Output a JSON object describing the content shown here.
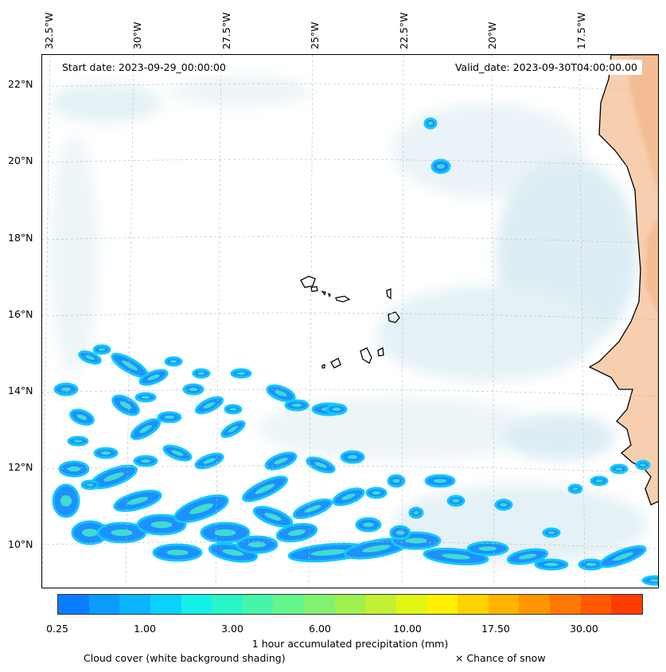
{
  "map": {
    "start_date": "Start date: 2023-09-29_00:00:00",
    "valid_date": "Valid_date: 2023-09-30T04:00:00.00",
    "longitude_labels": [
      "32.5°W",
      "30°W",
      "27.5°W",
      "25°W",
      "22.5°W",
      "20°W",
      "17.5°W"
    ],
    "latitude_labels": [
      "22°N",
      "20°N",
      "18°N",
      "16°N",
      "14°N",
      "12°N",
      "10°N"
    ],
    "region": "Cape Verde Islands and West African coast",
    "colors": {
      "land": "#f7c9a3",
      "cloud": "#d6ebf2",
      "precip_light": "#0a8cff",
      "coastline": "#000000"
    }
  },
  "colorbar": {
    "tick_labels": [
      "0.25",
      "1.00",
      "3.00",
      "6.00",
      "10.00",
      "17.50",
      "30.00"
    ],
    "colors": [
      "#0a7dff",
      "#0a9bff",
      "#0ab4ff",
      "#0ad2ff",
      "#14f0e6",
      "#28f5c8",
      "#46f5aa",
      "#64f58c",
      "#82f070",
      "#a0f050",
      "#c3f032",
      "#e1f514",
      "#fff000",
      "#ffd200",
      "#ffb400",
      "#ff9600",
      "#ff7800",
      "#ff5a00",
      "#ff3c00"
    ],
    "label": "1 hour accumulated precipitation (mm)"
  },
  "legend": {
    "cloud_cover": "Cloud cover (white background shading)",
    "snow": "× Chance of snow"
  }
}
